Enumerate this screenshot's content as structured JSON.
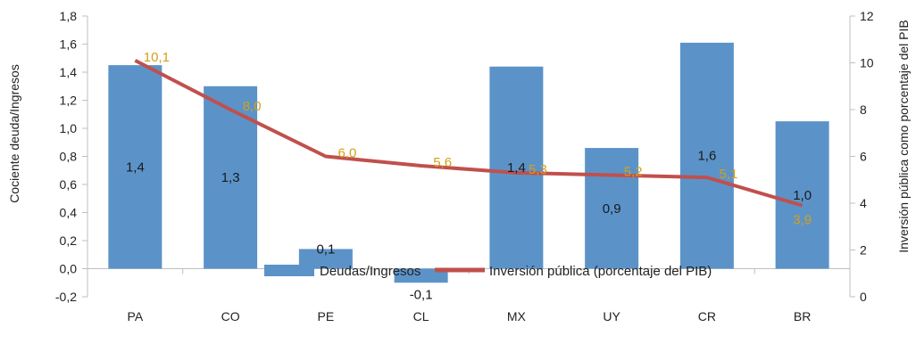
{
  "chart_data": {
    "type": "bar",
    "categories": [
      "PA",
      "CO",
      "PE",
      "CL",
      "MX",
      "UY",
      "CR",
      "BR"
    ],
    "series": [
      {
        "name": "Deudas/Ingresos",
        "kind": "bar",
        "axis": "left",
        "values": [
          1.45,
          1.3,
          0.14,
          -0.1,
          1.44,
          0.86,
          1.61,
          1.05
        ],
        "labels": [
          "1,4",
          "1,3",
          "0,1",
          "-0,1",
          "1,4",
          "0,9",
          "1,6",
          "1,0"
        ],
        "color": "#5b93c9"
      },
      {
        "name": "Inversión pública (porcentaje del PIB)",
        "kind": "line",
        "axis": "right",
        "values": [
          10.1,
          8.0,
          6.0,
          5.6,
          5.3,
          5.2,
          5.1,
          3.9
        ],
        "labels": [
          "10,1",
          "8,0",
          "6,0",
          "5,6",
          "5,3",
          "5,2",
          "5,1",
          "3,9"
        ],
        "color": "#c0504d",
        "label_color": "#d4a017"
      }
    ],
    "ylabel": "Cociente deuda/Ingresos",
    "ylim": [
      -0.2,
      1.8
    ],
    "yticks": [
      -0.2,
      0.0,
      0.2,
      0.4,
      0.6,
      0.8,
      1.0,
      1.2,
      1.4,
      1.6,
      1.8
    ],
    "ytick_labels": [
      "-0,2",
      "0,0",
      "0,2",
      "0,4",
      "0,6",
      "0,8",
      "1,0",
      "1,2",
      "1,4",
      "1,6",
      "1,8"
    ],
    "y2label": "Inversión pública como porcentaje del PIB",
    "y2lim": [
      0,
      12
    ],
    "y2ticks": [
      0,
      2,
      4,
      6,
      8,
      10,
      12
    ],
    "y2tick_labels": [
      "0",
      "2",
      "4",
      "6",
      "8",
      "10",
      "12"
    ],
    "grid": false,
    "legend_position": "bottom"
  }
}
